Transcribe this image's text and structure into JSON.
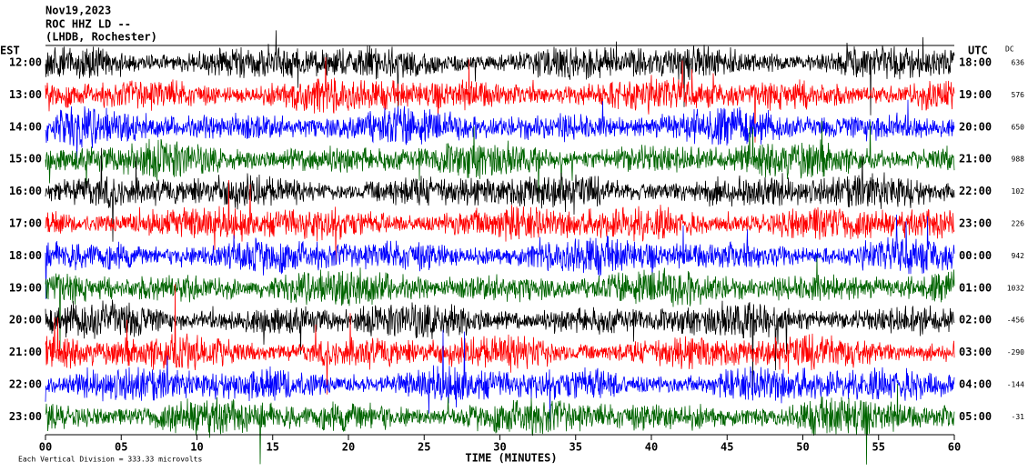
{
  "chart_data": {
    "type": "helicorder",
    "title": "Nov19,2023",
    "subtitle": "ROC HHZ LD --",
    "station": "(LHDB, Rochester)",
    "left_axis_label": "EST",
    "right_axis_label": "UTC",
    "dc_label": "DC",
    "xlabel": "TIME (MINUTES)",
    "footer": "Each Vertical Division =  333.33 microvolts",
    "xlim": [
      0,
      60
    ],
    "xticks": [
      {
        "value": 0,
        "label": "00"
      },
      {
        "value": 5,
        "label": "05"
      },
      10,
      15,
      20,
      25,
      30,
      35,
      40,
      45,
      50,
      55,
      60
    ],
    "rows": [
      {
        "local": "12:00",
        "utc": "18:00",
        "dc": 636,
        "color": "#000000"
      },
      {
        "local": "13:00",
        "utc": "19:00",
        "dc": 576,
        "color": "#ff0000"
      },
      {
        "local": "14:00",
        "utc": "20:00",
        "dc": 650,
        "color": "#0000ff"
      },
      {
        "local": "15:00",
        "utc": "21:00",
        "dc": 988,
        "color": "#006400"
      },
      {
        "local": "16:00",
        "utc": "22:00",
        "dc": 102,
        "color": "#000000"
      },
      {
        "local": "17:00",
        "utc": "23:00",
        "dc": 226,
        "color": "#ff0000"
      },
      {
        "local": "18:00",
        "utc": "00:00",
        "dc": 942,
        "color": "#0000ff"
      },
      {
        "local": "19:00",
        "utc": "01:00",
        "dc": 1032,
        "color": "#006400"
      },
      {
        "local": "20:00",
        "utc": "02:00",
        "dc": -456,
        "color": "#000000"
      },
      {
        "local": "21:00",
        "utc": "03:00",
        "dc": -290,
        "color": "#ff0000"
      },
      {
        "local": "22:00",
        "utc": "04:00",
        "dc": -144,
        "color": "#0000ff"
      },
      {
        "local": "23:00",
        "utc": "05:00",
        "dc": -31,
        "color": "#006400"
      }
    ]
  }
}
